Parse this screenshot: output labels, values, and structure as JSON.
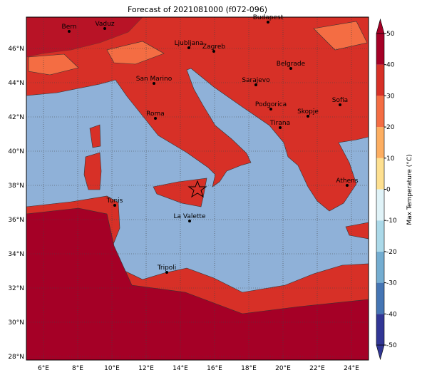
{
  "title": "Forecast of 2021081000 (f072-096)",
  "lon_ticks": [
    {
      "value": 6,
      "label": "6°E"
    },
    {
      "value": 8,
      "label": "8°E"
    },
    {
      "value": 10,
      "label": "10°E"
    },
    {
      "value": 12,
      "label": "12°E"
    },
    {
      "value": 14,
      "label": "14°E"
    },
    {
      "value": 16,
      "label": "16°E"
    },
    {
      "value": 18,
      "label": "18°E"
    },
    {
      "value": 20,
      "label": "20°E"
    },
    {
      "value": 22,
      "label": "22°E"
    },
    {
      "value": 24,
      "label": "24°E"
    }
  ],
  "lat_ticks": [
    {
      "value": 28,
      "label": "28°N"
    },
    {
      "value": 30,
      "label": "30°N"
    },
    {
      "value": 32,
      "label": "32°N"
    },
    {
      "value": 34,
      "label": "34°N"
    },
    {
      "value": 36,
      "label": "36°N"
    },
    {
      "value": 38,
      "label": "38°N"
    },
    {
      "value": 40,
      "label": "40°N"
    },
    {
      "value": 42,
      "label": "42°N"
    },
    {
      "value": 44,
      "label": "44°N"
    },
    {
      "value": 46,
      "label": "46°N"
    }
  ],
  "cities": [
    "Bern",
    "Vaduz",
    "Budapest",
    "Ljubljana",
    "Zagreb",
    "Belgrade",
    "San Marino",
    "Sarajevo",
    "Sofia",
    "Podgorica",
    "Skopje",
    "Roma",
    "Tirana",
    "Athens",
    "Tunis",
    "La Valette",
    "Tripoli"
  ],
  "colorbar": {
    "label": "Max Temperature (°C)",
    "ticks": [
      -50,
      -40,
      -30,
      -20,
      -10,
      0,
      10,
      20,
      30,
      40,
      50
    ],
    "colors": [
      "#313695",
      "#4575b4",
      "#74add1",
      "#abd9e9",
      "#e0f3f8",
      "#fee090",
      "#fdae61",
      "#f46d43",
      "#d73027",
      "#a50026"
    ]
  }
}
